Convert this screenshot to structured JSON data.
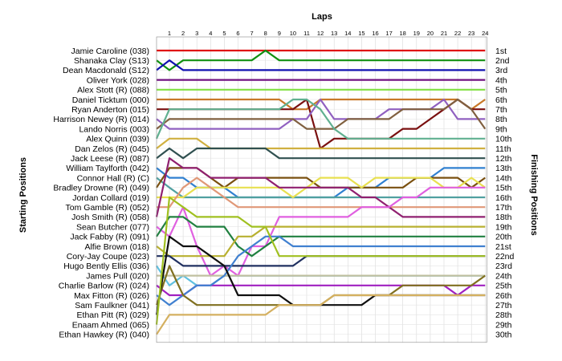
{
  "chart_data": {
    "type": "line",
    "title": "",
    "xlabel": "Laps",
    "ylabel_left": "Starting Positions",
    "ylabel_right": "Finishing Positions",
    "laps": [
      1,
      2,
      3,
      4,
      5,
      6,
      7,
      8,
      9,
      10,
      11,
      12,
      13,
      14,
      15,
      16,
      17,
      18,
      19,
      20,
      21,
      22,
      23,
      24
    ],
    "lap_labels": [
      "1",
      "2",
      "3",
      "4",
      "5",
      "6",
      "7",
      "8",
      "9",
      "10",
      "11",
      "12",
      "13",
      "14",
      "15",
      "16",
      "17",
      "18",
      "19",
      "20",
      "21",
      "22",
      "23",
      "24"
    ],
    "starting_grid": [
      "Jamie Caroline (038)",
      "Shanaka Clay (S13)",
      "Dean Macdonald (S12)",
      "Oliver York (028)",
      "Alex Stott (R) (088)",
      "Daniel Ticktum (000)",
      "Ryan Anderton (015)",
      "Harrison Newey (R) (014)",
      "Lando Norris (003)",
      "Alex Quinn (039)",
      "Dan Zelos (R) (045)",
      "Jack Leese (R) (087)",
      "William Taylforth (042)",
      "Connor Hall (R) (C)",
      "Bradley Drowne (R) (049)",
      "Jordan Collard (019)",
      "Tom Gamble (R) (052)",
      "Josh Smith (R) (058)",
      "Sean Butcher (077)",
      "Jack Fabby (R) (091)",
      "Alfie Brown (018)",
      "Cory-Jay Coupe (023)",
      "Hugo Bently Ellis (036)",
      "James Pull (020)",
      "Charlie Barlow (R) (024)",
      "Max Fitton (R) (026)",
      "Sam Faulkner (041)",
      "Ethan Pitt (R) (029)",
      "Enaam Ahmed (065)",
      "Ethan Hawkey (R) (040)"
    ],
    "finishing_labels": [
      "1st",
      "2nd",
      "3rd",
      "4th",
      "5th",
      "6th",
      "7th",
      "8th",
      "9th",
      "10th",
      "11th",
      "12th",
      "13th",
      "14th",
      "15th",
      "16th",
      "17th",
      "18th",
      "19th",
      "20th",
      "21st",
      "22nd",
      "23rd",
      "24th",
      "25th",
      "26th",
      "27th",
      "28th",
      "29th",
      "30th"
    ],
    "series": [
      {
        "color": "#e01010",
        "positions": [
          1,
          1,
          1,
          1,
          1,
          1,
          1,
          1,
          1,
          1,
          1,
          1,
          1,
          1,
          1,
          1,
          1,
          1,
          1,
          1,
          1,
          1,
          1,
          1,
          1
        ]
      },
      {
        "color": "#109010",
        "positions": [
          2,
          3,
          2,
          2,
          2,
          2,
          2,
          2,
          1,
          2,
          2,
          2,
          2,
          2,
          2,
          2,
          2,
          2,
          2,
          2,
          2,
          2,
          2,
          2,
          2
        ]
      },
      {
        "color": "#1010b0",
        "positions": [
          3,
          2,
          3,
          3,
          3,
          3,
          3,
          3,
          3,
          3,
          3,
          3,
          3,
          3,
          3,
          3,
          3,
          3,
          3,
          3,
          3,
          3,
          3,
          3,
          3
        ]
      },
      {
        "color": "#701080",
        "positions": [
          4,
          4,
          4,
          4,
          4,
          4,
          4,
          4,
          4,
          4,
          4,
          4,
          4,
          4,
          4,
          4,
          4,
          4,
          4,
          4,
          4,
          4,
          4,
          4,
          4
        ]
      },
      {
        "color": "#80e040",
        "positions": [
          5,
          5,
          5,
          5,
          5,
          5,
          5,
          5,
          5,
          5,
          5,
          5,
          5,
          5,
          5,
          5,
          5,
          5,
          5,
          5,
          5,
          5,
          5,
          5,
          5
        ]
      },
      {
        "color": "#c87828",
        "positions": [
          6,
          6,
          6,
          6,
          6,
          6,
          6,
          6,
          6,
          6,
          7,
          7,
          6,
          6,
          6,
          6,
          6,
          6,
          6,
          6,
          6,
          6,
          6,
          7,
          6
        ]
      },
      {
        "color": "#7a1010",
        "positions": [
          7,
          7,
          7,
          7,
          7,
          7,
          7,
          7,
          7,
          7,
          7,
          6,
          11,
          10,
          10,
          10,
          10,
          10,
          9,
          9,
          8,
          7,
          6,
          7,
          7
        ]
      },
      {
        "color": "#9060c0",
        "positions": [
          8,
          9,
          9,
          9,
          9,
          9,
          9,
          9,
          9,
          9,
          8,
          8,
          6,
          8,
          8,
          8,
          8,
          7,
          7,
          7,
          7,
          6,
          8,
          8,
          8
        ]
      },
      {
        "color": "#806040",
        "positions": [
          9,
          8,
          8,
          8,
          8,
          8,
          8,
          8,
          8,
          8,
          8,
          9,
          9,
          9,
          8,
          8,
          8,
          8,
          7,
          7,
          7,
          7,
          6,
          7,
          9
        ]
      },
      {
        "color": "#60b090",
        "positions": [
          10,
          7,
          7,
          7,
          7,
          7,
          7,
          7,
          7,
          7,
          6,
          6,
          7,
          9,
          10,
          10,
          10,
          10,
          10,
          10,
          10,
          10,
          10,
          10,
          10
        ]
      },
      {
        "color": "#d0b040",
        "positions": [
          11,
          10,
          10,
          10,
          11,
          11,
          11,
          11,
          11,
          11,
          11,
          11,
          11,
          11,
          11,
          11,
          11,
          11,
          11,
          11,
          11,
          11,
          11,
          11,
          11
        ]
      },
      {
        "color": "#305050",
        "positions": [
          12,
          11,
          12,
          11,
          11,
          11,
          11,
          11,
          11,
          12,
          12,
          12,
          12,
          12,
          12,
          12,
          12,
          12,
          12,
          12,
          12,
          12,
          12,
          12,
          12
        ]
      },
      {
        "color": "#3080d0",
        "positions": [
          13,
          14,
          14,
          15,
          15,
          15,
          16,
          16,
          16,
          16,
          16,
          16,
          16,
          16,
          15,
          15,
          15,
          14,
          14,
          14,
          14,
          13,
          13,
          13,
          13
        ]
      },
      {
        "color": "#50a0a0",
        "positions": [
          14,
          15,
          16,
          16,
          16,
          16,
          16,
          16,
          16,
          16,
          16,
          16,
          16,
          16,
          16,
          16,
          16,
          16,
          16,
          16,
          16,
          16,
          16,
          16,
          16
        ]
      },
      {
        "color": "#7a5010",
        "positions": [
          15,
          13,
          13,
          13,
          14,
          15,
          14,
          14,
          14,
          14,
          14,
          14,
          15,
          15,
          15,
          15,
          15,
          15,
          15,
          14,
          14,
          14,
          14,
          15,
          14
        ]
      },
      {
        "color": "#e8e050",
        "positions": [
          16,
          16,
          16,
          15,
          15,
          15,
          15,
          15,
          15,
          15,
          16,
          15,
          14,
          14,
          14,
          15,
          14,
          14,
          14,
          14,
          14,
          15,
          15,
          14,
          15
        ]
      },
      {
        "color": "#e09878",
        "positions": [
          17,
          17,
          15,
          14,
          15,
          16,
          17,
          17,
          17,
          17,
          17,
          17,
          17,
          17,
          17,
          17,
          17,
          17,
          17,
          17,
          17,
          17,
          17,
          17,
          17
        ]
      },
      {
        "color": "#902070",
        "positions": [
          18,
          12,
          13,
          13,
          14,
          14,
          14,
          14,
          14,
          15,
          15,
          15,
          15,
          15,
          15,
          16,
          16,
          17,
          18,
          18,
          18,
          18,
          18,
          18,
          18
        ]
      },
      {
        "color": "#e060e0",
        "positions": [
          19,
          20,
          17,
          21,
          24,
          23,
          24,
          21,
          21,
          18,
          18,
          18,
          18,
          18,
          18,
          17,
          17,
          17,
          16,
          16,
          15,
          15,
          15,
          15,
          15
        ]
      },
      {
        "color": "#208040",
        "positions": [
          20,
          18,
          18,
          19,
          19,
          19,
          21,
          22,
          21,
          20,
          20,
          20,
          20,
          20,
          20,
          20,
          20,
          20,
          20,
          20,
          20,
          20,
          20,
          20,
          20
        ]
      },
      {
        "color": "#b8b030",
        "positions": [
          21,
          22,
          22,
          22,
          22,
          22,
          20,
          20,
          19,
          19,
          19,
          19,
          19,
          19,
          19,
          19,
          19,
          19,
          19,
          19,
          19,
          19,
          19,
          19,
          19
        ]
      },
      {
        "color": "#203060",
        "positions": [
          22,
          22,
          23,
          23,
          23,
          23,
          23,
          23,
          23,
          23,
          23,
          22,
          22,
          22,
          22,
          22,
          22,
          22,
          22,
          22,
          22,
          22,
          22,
          22,
          22
        ]
      },
      {
        "color": "#60c0e0",
        "positions": [
          23,
          25,
          24,
          25,
          25,
          24,
          24,
          24,
          24,
          24,
          24,
          24,
          24,
          24,
          24,
          24,
          24,
          24,
          24,
          24,
          24,
          24,
          24,
          24,
          24
        ]
      },
      {
        "color": "#c0c0a0",
        "positions": [
          24,
          24,
          24,
          24,
          24,
          24,
          24,
          24,
          24,
          24,
          24,
          24,
          24,
          24,
          24,
          24,
          24,
          24,
          24,
          24,
          24,
          24,
          24,
          24,
          24
        ]
      },
      {
        "color": "#a020c0",
        "positions": [
          25,
          26,
          26,
          25,
          25,
          25,
          25,
          25,
          25,
          25,
          25,
          25,
          25,
          25,
          25,
          25,
          25,
          25,
          25,
          25,
          25,
          25,
          26,
          25,
          25
        ]
      },
      {
        "color": "#4080d0",
        "positions": [
          26,
          27,
          26,
          25,
          25,
          24,
          22,
          21,
          20,
          20,
          21,
          21,
          21,
          21,
          21,
          21,
          21,
          21,
          21,
          21,
          21,
          21,
          21,
          21,
          21
        ]
      },
      {
        "color": "#807020",
        "positions": [
          27,
          23,
          26,
          27,
          27,
          27,
          27,
          27,
          27,
          27,
          27,
          27,
          27,
          26,
          26,
          26,
          26,
          26,
          25,
          25,
          25,
          25,
          25,
          25,
          24
        ]
      },
      {
        "color": "#101010",
        "positions": [
          28,
          20,
          21,
          21,
          22,
          23,
          26,
          26,
          26,
          26,
          27,
          27,
          27,
          27,
          27,
          27,
          26,
          26,
          26,
          26,
          26,
          26,
          26,
          26,
          26
        ]
      },
      {
        "color": "#a0c020",
        "positions": [
          29,
          16,
          17,
          18,
          18,
          18,
          18,
          19,
          19,
          22,
          22,
          22,
          22,
          22,
          22,
          22,
          22,
          22,
          22,
          22,
          22,
          22,
          22,
          22,
          22
        ]
      },
      {
        "color": "#d4b060",
        "positions": [
          30,
          28,
          28,
          28,
          28,
          28,
          28,
          28,
          28,
          27,
          27,
          27,
          27,
          26,
          26,
          26,
          26,
          26,
          26,
          26,
          26,
          26,
          26,
          26,
          26
        ]
      }
    ]
  }
}
